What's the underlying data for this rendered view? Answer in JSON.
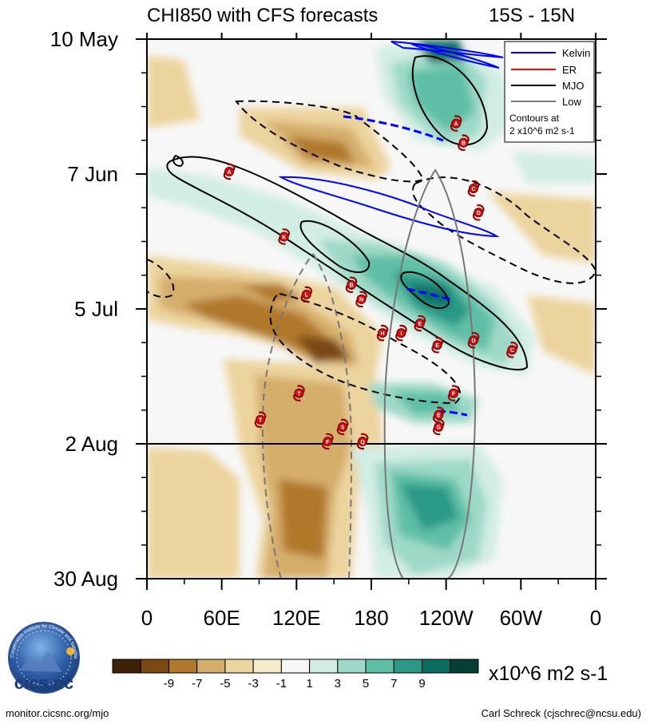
{
  "chart_data": {
    "type": "hovmoller",
    "title": "CHI850 with CFS forecasts",
    "region": "15S - 15N",
    "variable": "CHI850",
    "units": "x10^6 m2 s-1",
    "x_axis": {
      "ticks": [
        {
          "lon": 0,
          "label": "0"
        },
        {
          "lon": 60,
          "label": "60E"
        },
        {
          "lon": 120,
          "label": "120E"
        },
        {
          "lon": 180,
          "label": "180"
        },
        {
          "lon": 240,
          "label": "120W"
        },
        {
          "lon": 300,
          "label": "60W"
        },
        {
          "lon": 360,
          "label": "0"
        }
      ],
      "range": [
        0,
        360
      ]
    },
    "y_axis": {
      "ticks": [
        {
          "day": 0,
          "label": "10 May"
        },
        {
          "day": 28,
          "label": "7 Jun"
        },
        {
          "day": 56,
          "label": "5 Jul"
        },
        {
          "day": 84,
          "label": "2 Aug"
        },
        {
          "day": 112,
          "label": "30 Aug"
        }
      ],
      "range": [
        0,
        112
      ],
      "forecast_start_day": 84
    },
    "colorbar": {
      "labels": [
        "-9",
        "-7",
        "-5",
        "-3",
        "-1",
        "1",
        "3",
        "5",
        "7",
        "9"
      ],
      "colors": [
        "#3d2106",
        "#7a4a12",
        "#b0782c",
        "#d6ae6c",
        "#ecd49e",
        "#f5eccd",
        "#f6f6f6",
        "#d2ede4",
        "#9ed9c7",
        "#5fbfa6",
        "#2a9a87",
        "#0c6e63",
        "#043f36"
      ]
    },
    "legend": {
      "items": [
        {
          "name": "Kelvin",
          "color": "#0000ff"
        },
        {
          "name": "ER",
          "color": "#ff0000"
        },
        {
          "name": "MJO",
          "color": "#000000"
        },
        {
          "name": "Low",
          "color": "#777777"
        }
      ],
      "note_line1": "Contours at",
      "note_line2": "2 x10^6 m2 s-1"
    },
    "storms": [
      {
        "letter": "A",
        "lon": 66,
        "day": 27.5
      },
      {
        "letter": "K",
        "lon": 110,
        "day": 41
      },
      {
        "letter": "B",
        "lon": 164,
        "day": 51
      },
      {
        "letter": "L",
        "lon": 128,
        "day": 53
      },
      {
        "letter": "N",
        "lon": 172,
        "day": 54
      },
      {
        "letter": "A",
        "lon": 248,
        "day": 17.5
      },
      {
        "letter": "B",
        "lon": 254,
        "day": 21.5
      },
      {
        "letter": "C",
        "lon": 262,
        "day": 31
      },
      {
        "letter": "D",
        "lon": 266,
        "day": 36
      },
      {
        "letter": "E",
        "lon": 219,
        "day": 59
      },
      {
        "letter": "H",
        "lon": 189,
        "day": 61
      },
      {
        "letter": "I",
        "lon": 204,
        "day": 61
      },
      {
        "letter": "D",
        "lon": 262,
        "day": 62.5
      },
      {
        "letter": "E",
        "lon": 233,
        "day": 63.5
      },
      {
        "letter": "C",
        "lon": 293,
        "day": 64.5
      },
      {
        "letter": "T",
        "lon": 122,
        "day": 73.5
      },
      {
        "letter": "F",
        "lon": 246,
        "day": 73.5
      },
      {
        "letter": "T",
        "lon": 91,
        "day": 79
      },
      {
        "letter": "E",
        "lon": 234,
        "day": 78
      },
      {
        "letter": "G",
        "lon": 234,
        "day": 80.5
      },
      {
        "letter": "S",
        "lon": 157,
        "day": 80.5
      },
      {
        "letter": "F",
        "lon": 145,
        "day": 83.5
      },
      {
        "letter": "Q",
        "lon": 173,
        "day": 83.5
      }
    ]
  },
  "footer": {
    "logo_text": "cics.nc",
    "logo_ring_text": "Cooperative Institute for Climate and Satellites",
    "website": "monitor.cicsnc.org/mjo",
    "author": "Carl Schreck (cjschrec@ncsu.edu)"
  }
}
